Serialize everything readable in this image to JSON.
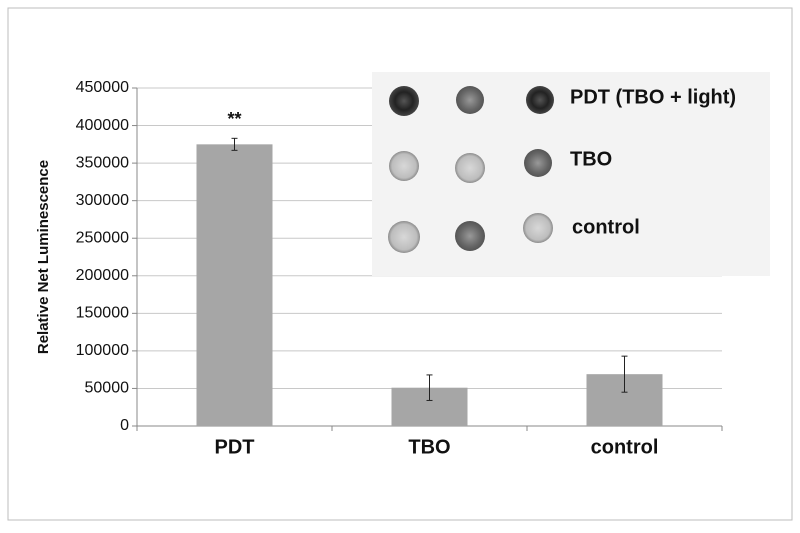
{
  "chart_data": {
    "type": "bar",
    "y_label": "Relative Net Luminescence",
    "categories": [
      "PDT",
      "TBO",
      "control"
    ],
    "values": [
      375000,
      51000,
      69000
    ],
    "errors": [
      8000,
      17000,
      24000
    ],
    "color": "#a6a6a6",
    "annotations": [
      "**",
      null,
      null
    ],
    "ylim": [
      0,
      450000
    ],
    "yticks": [
      0,
      50000,
      100000,
      150000,
      200000,
      250000,
      300000,
      350000,
      400000,
      450000
    ],
    "grid": true,
    "inset_labels": [
      "PDT (TBO + light)",
      "TBO",
      "control"
    ]
  }
}
